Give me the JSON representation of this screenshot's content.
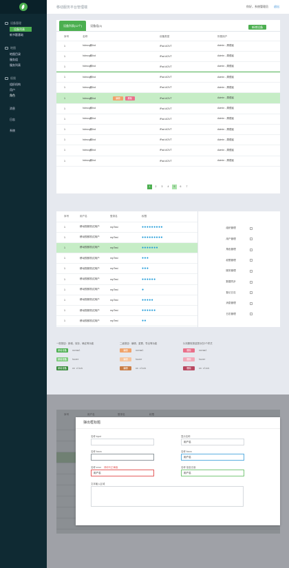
{
  "app": {
    "title": "移动服务平台管理端"
  },
  "user": {
    "name": "你好，系统管理员",
    "logout": "退出"
  },
  "sidebar": {
    "groups": [
      {
        "label": "设备管理",
        "icon": "device-icon",
        "items": [
          {
            "label": "设备列表",
            "active": true
          },
          {
            "label": "新书题基础"
          }
        ]
      },
      {
        "label": "地图",
        "icon": "map-icon",
        "items": [
          {
            "label": "地图目录"
          },
          {
            "label": "服务组"
          },
          {
            "label": "服务列表"
          }
        ]
      },
      {
        "label": "权限",
        "icon": "lock-icon",
        "items": [
          {
            "label": "组织机构"
          },
          {
            "label": "用户"
          },
          {
            "label": "角色"
          }
        ]
      }
    ],
    "solo": [
      {
        "label": "消息"
      },
      {
        "label": "日志"
      },
      {
        "label": "系统"
      }
    ]
  },
  "devices": {
    "tabs": [
      {
        "label": "设备列表(12个)",
        "active": true
      },
      {
        "label": "设备组(4)"
      }
    ],
    "add_button": "新增设备",
    "columns": [
      "序号",
      "名称",
      "设备类型",
      "所属用户"
    ],
    "rows": [
      {
        "no": "1",
        "name": "hdmcq和fcd",
        "type": "iPad AGVT",
        "owner": "Admin - 周德民"
      },
      {
        "no": "1",
        "name": "hdmcq和fcd",
        "type": "iPad AGVT",
        "owner": "Admin - 周德民"
      },
      {
        "no": "1",
        "name": "hdmcq和fcd",
        "type": "iPad AGVT",
        "owner": "Admin - 周德民"
      },
      {
        "no": "1",
        "name": "hdmcq和fcd",
        "type": "iPad AGVT",
        "owner": "Admin - 周德民"
      },
      {
        "no": "1",
        "name": "hdmcq和fcd",
        "type": "iPad AGVT",
        "owner": "Admin - 周德民"
      },
      {
        "no": "1",
        "name": "hdmcq和fcd",
        "type": "iPad AGVT",
        "owner": "Admin - 周德民"
      },
      {
        "no": "1",
        "name": "hdmcq和fcd",
        "type": "iPad AGVT",
        "owner": "Admin - 周德民"
      },
      {
        "no": "1",
        "name": "hdmcq和fcd",
        "type": "iPad AGVT",
        "owner": "Admin - 周德民"
      },
      {
        "no": "1",
        "name": "hdmcq和fcd",
        "type": "iPad AGVT",
        "owner": "Admin - 周德民"
      },
      {
        "no": "1",
        "name": "hdmcq和fcd",
        "type": "iPad AGVT",
        "owner": "Admin - 周德民"
      },
      {
        "no": "1",
        "name": "hdmcq和fcd",
        "type": "iPad AGVT",
        "owner": "Admin - 周德民"
      },
      {
        "no": "1",
        "name": "hdmcq和fcd",
        "type": "iPad AGVT",
        "owner": "Admin - 周德民"
      }
    ],
    "row_actions": [
      "编辑",
      "删除"
    ],
    "pages": [
      "1",
      "2",
      "3",
      "4",
      "5",
      "6",
      "7"
    ],
    "current_page": "1",
    "selected_page": "5"
  },
  "users": {
    "columns": [
      "序号",
      "用户名",
      "登录名",
      "权限"
    ],
    "rows": [
      {
        "no": "1",
        "name": "移动视频机试用户",
        "login": "mpTest",
        "perm": "●●●●●●●●●"
      },
      {
        "no": "1",
        "name": "移动视频机试用户",
        "login": "mpTest",
        "perm": "●●●●●●●●●"
      },
      {
        "no": "1",
        "name": "移动视频机试用户",
        "login": "mpTest",
        "perm": "●●●●●●●"
      },
      {
        "no": "1",
        "name": "移动视频机试用户",
        "login": "mpTest",
        "perm": "●●●"
      },
      {
        "no": "1",
        "name": "移动视频机试用户",
        "login": "mpTest",
        "perm": "●●●"
      },
      {
        "no": "1",
        "name": "移动视频机试用户",
        "login": "mpTest",
        "perm": "●●●●●●"
      },
      {
        "no": "1",
        "name": "移动视频机试用户",
        "login": "mpTest",
        "perm": "●"
      },
      {
        "no": "1",
        "name": "移动视频机试用户",
        "login": "mpTest",
        "perm": "●●●●●"
      },
      {
        "no": "1",
        "name": "移动视频机试用户",
        "login": "mpTest",
        "perm": "●●●●●●"
      },
      {
        "no": "1",
        "name": "移动视频机试用户",
        "login": "mpTest",
        "perm": "●●"
      }
    ],
    "permissions": [
      "组织管理",
      "用户管理",
      "角色管理",
      "权限管理",
      "服务管理",
      "数据同步",
      "登记日志",
      "消息管理",
      "日志管理"
    ]
  },
  "legend": {
    "groups": [
      {
        "title": "一般按钮：新增、保存、确定等功能",
        "items": [
          {
            "label": "新增设备",
            "state": "normal",
            "color": "#4caf50"
          },
          {
            "label": "新增设备",
            "state": "hover",
            "color": "#7fcc7f"
          },
          {
            "label": "新增设备",
            "state": "on click",
            "color": "#3a8c3d"
          }
        ]
      },
      {
        "title": "二级按钮：编辑、重置、导出等功能",
        "items": [
          {
            "label": "编辑",
            "state": "normal",
            "color": "#f0a36b"
          },
          {
            "label": "编辑",
            "state": "hover",
            "color": "#f6c49c"
          },
          {
            "label": "编辑",
            "state": "on click",
            "color": "#c97d45"
          }
        ]
      },
      {
        "title": "片刻删除按钮提示仅3个样式",
        "items": [
          {
            "label": "删除",
            "state": "normal",
            "color": "#e9708a"
          },
          {
            "label": "删除",
            "state": "hover",
            "color": "#f3a9b9"
          },
          {
            "label": "删除",
            "state": "on click",
            "color": "#b84760"
          }
        ]
      }
    ]
  },
  "modal": {
    "title": "弹出框标题",
    "fields": [
      {
        "label": "名称 input",
        "value": "",
        "state": "normal"
      },
      {
        "label": "显示名称",
        "value": "用户名",
        "state": "normal"
      },
      {
        "label": "名称 focus",
        "value": "",
        "state": "focus"
      },
      {
        "label": "名称 focus",
        "value": "用户名",
        "state": "focus-blue"
      },
      {
        "label": "名称 error",
        "error": "请填写正确值",
        "value": "用户名",
        "state": "error"
      },
      {
        "label": "名称 信息无误",
        "value": "用户名",
        "state": "success"
      }
    ],
    "textarea_label": "文本输入区域"
  },
  "behind_table": {
    "columns": [
      "序号",
      "用户名",
      "登录名",
      "权限"
    ]
  }
}
